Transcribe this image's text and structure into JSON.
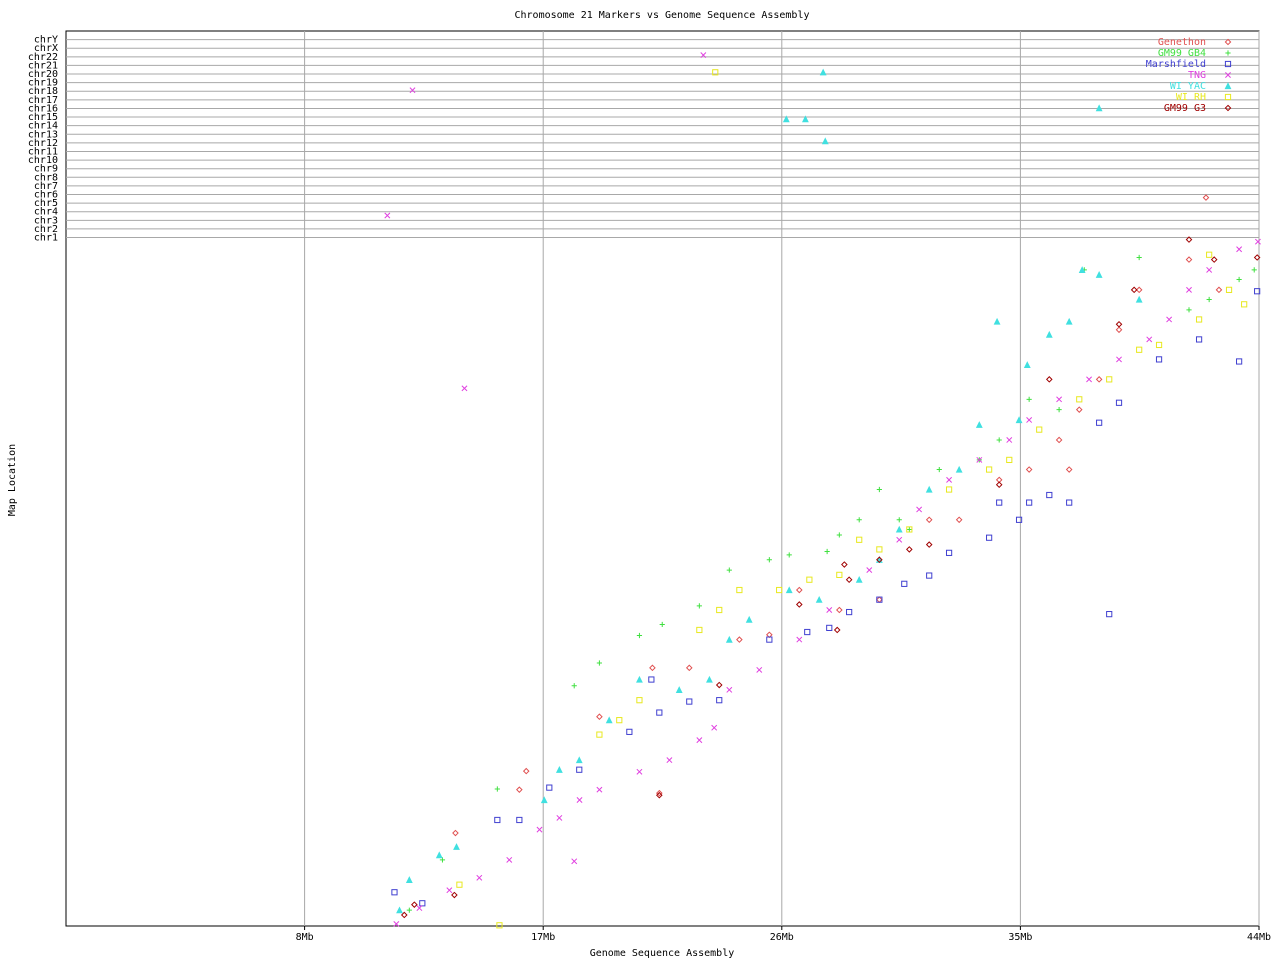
{
  "chart_data": {
    "type": "scatter",
    "title": "Chromosome 21 Markers vs Genome Sequence Assembly",
    "x_label": "Genome Sequence Assembly",
    "y_label": "Map Location",
    "xlim": [
      -1,
      44
    ],
    "ylim": [
      0,
      130
    ],
    "xticks": [
      {
        "value": 8,
        "label": "8Mb"
      },
      {
        "value": 17,
        "label": "17Mb"
      },
      {
        "value": 26,
        "label": "26Mb"
      },
      {
        "value": 35,
        "label": "35Mb"
      },
      {
        "value": 44,
        "label": "44Mb"
      }
    ],
    "yticks": [
      {
        "value": 100,
        "label": "chr1"
      },
      {
        "value": 101.25,
        "label": "chr2"
      },
      {
        "value": 102.5,
        "label": "chr3"
      },
      {
        "value": 103.75,
        "label": "chr4"
      },
      {
        "value": 105,
        "label": "chr5"
      },
      {
        "value": 106.25,
        "label": "chr6"
      },
      {
        "value": 107.5,
        "label": "chr7"
      },
      {
        "value": 108.75,
        "label": "chr8"
      },
      {
        "value": 110,
        "label": "chr9"
      },
      {
        "value": 111.25,
        "label": "chr10"
      },
      {
        "value": 112.5,
        "label": "chr11"
      },
      {
        "value": 113.75,
        "label": "chr12"
      },
      {
        "value": 115,
        "label": "chr13"
      },
      {
        "value": 116.25,
        "label": "chr14"
      },
      {
        "value": 117.5,
        "label": "chr15"
      },
      {
        "value": 118.75,
        "label": "chr16"
      },
      {
        "value": 120,
        "label": "chr17"
      },
      {
        "value": 121.25,
        "label": "chr18"
      },
      {
        "value": 122.5,
        "label": "chr19"
      },
      {
        "value": 123.75,
        "label": "chr20"
      },
      {
        "value": 125,
        "label": "chr21"
      },
      {
        "value": 126.25,
        "label": "chr22"
      },
      {
        "value": 127.5,
        "label": "chrX"
      },
      {
        "value": 128.75,
        "label": "chrY"
      }
    ],
    "grid": true,
    "legend": "top-right",
    "series": [
      {
        "name": "Genethon",
        "color": "#e05050",
        "marker": "diamond",
        "x": [
          13.69,
          16.1,
          16.36,
          19.12,
          21.12,
          21.38,
          22.51,
          24.4,
          25.53,
          26.66,
          28.17,
          29.68,
          31.56,
          32.69,
          34.2,
          35.33,
          36.46,
          37.22,
          37.97,
          38.72,
          39.48,
          41.36,
          42.0,
          42.49,
          36.84
        ],
        "y": [
          13.5,
          19.8,
          22.5,
          30.4,
          37.5,
          19.3,
          37.5,
          41.6,
          42.3,
          48.8,
          45.9,
          47.4,
          59.0,
          59.0,
          64.8,
          66.3,
          70.6,
          75.0,
          79.4,
          86.6,
          92.4,
          96.8,
          105.8,
          92.4,
          66.3
        ]
      },
      {
        "name": "GM99 GB4",
        "color": "#40e040",
        "marker": "plus",
        "x": [
          15.27,
          18.17,
          19.12,
          20.63,
          21.49,
          22.89,
          24.02,
          25.53,
          26.28,
          27.71,
          28.17,
          28.92,
          29.68,
          30.43,
          30.81,
          31.94,
          33.45,
          34.2,
          35.33,
          36.46,
          37.41,
          39.48,
          41.36,
          42.12,
          43.25,
          43.82,
          11.95,
          13.2
        ],
        "y": [
          19.9,
          34.9,
          38.2,
          42.2,
          43.8,
          46.5,
          51.7,
          53.2,
          53.9,
          54.4,
          56.8,
          59.0,
          63.4,
          59.0,
          57.6,
          66.3,
          67.7,
          70.6,
          76.5,
          75.0,
          95.3,
          97.1,
          89.5,
          91.0,
          93.9,
          95.3,
          2.3,
          9.6
        ]
      },
      {
        "name": "Marshfield",
        "color": "#4040d0",
        "marker": "square",
        "x": [
          11.39,
          12.44,
          15.27,
          16.1,
          17.23,
          18.36,
          20.25,
          21.08,
          21.38,
          22.51,
          23.64,
          25.53,
          26.96,
          27.79,
          28.54,
          29.68,
          30.62,
          31.56,
          32.31,
          33.82,
          34.2,
          34.95,
          35.33,
          36.09,
          36.84,
          37.97,
          38.72,
          38.35,
          40.23,
          41.74,
          43.25,
          43.93
        ],
        "y": [
          4.9,
          3.3,
          15.4,
          15.4,
          20.1,
          22.7,
          28.2,
          35.8,
          31.0,
          32.6,
          32.8,
          41.6,
          42.7,
          43.3,
          45.6,
          47.4,
          49.7,
          50.9,
          54.2,
          56.4,
          61.5,
          59.0,
          61.5,
          62.6,
          61.5,
          73.1,
          76.0,
          45.3,
          82.3,
          85.2,
          82.0,
          92.2
        ]
      },
      {
        "name": "TNG",
        "color": "#e040e0",
        "marker": "x",
        "x": [
          11.46,
          12.33,
          13.46,
          14.59,
          15.72,
          16.86,
          17.61,
          18.37,
          19.12,
          20.63,
          21.76,
          22.89,
          23.45,
          24.02,
          25.15,
          26.66,
          27.79,
          29.3,
          30.43,
          31.18,
          32.31,
          33.45,
          34.58,
          35.33,
          36.46,
          37.59,
          38.72,
          39.86,
          40.61,
          41.36,
          42.12,
          43.25,
          43.96,
          12.07,
          11.12,
          23.04,
          14.03,
          18.17
        ],
        "y": [
          0.3,
          2.6,
          5.2,
          7.0,
          9.6,
          14.0,
          15.7,
          18.3,
          19.8,
          22.4,
          24.1,
          27.0,
          28.8,
          34.3,
          37.2,
          41.6,
          45.9,
          51.7,
          56.1,
          60.5,
          64.8,
          67.7,
          70.6,
          73.5,
          76.5,
          79.4,
          82.3,
          85.2,
          88.1,
          92.4,
          95.3,
          98.3,
          99.4,
          121.4,
          103.2,
          126.5,
          78.1,
          9.4
        ]
      },
      {
        "name": "WI YAC",
        "color": "#40e0e0",
        "marker": "triangle",
        "x": [
          11.58,
          11.95,
          13.08,
          13.73,
          17.04,
          17.61,
          18.36,
          19.49,
          20.63,
          22.13,
          23.27,
          24.02,
          24.77,
          26.28,
          27.41,
          28.92,
          29.68,
          30.43,
          31.56,
          32.69,
          33.45,
          34.12,
          34.95,
          35.26,
          36.09,
          36.84,
          37.33,
          37.97,
          39.48,
          26.17,
          26.89,
          27.64,
          27.56,
          37.97
        ],
        "y": [
          2.3,
          6.7,
          10.3,
          11.5,
          18.3,
          22.7,
          24.1,
          29.9,
          35.8,
          34.3,
          35.8,
          41.6,
          44.5,
          48.8,
          47.4,
          50.3,
          53.2,
          57.6,
          63.4,
          66.3,
          72.8,
          87.8,
          73.5,
          81.5,
          85.9,
          87.8,
          95.3,
          94.6,
          91.0,
          117.2,
          117.2,
          114.0,
          124.0,
          118.8
        ]
      },
      {
        "name": "WI RH",
        "color": "#e8e820",
        "marker": "square",
        "x": [
          13.84,
          15.35,
          19.12,
          19.87,
          20.63,
          22.89,
          23.64,
          24.4,
          25.9,
          27.04,
          28.17,
          28.92,
          29.68,
          30.81,
          32.31,
          33.82,
          34.58,
          35.71,
          37.22,
          38.35,
          39.48,
          40.23,
          41.74,
          42.87,
          43.44,
          42.12,
          23.49
        ],
        "y": [
          6.0,
          0.1,
          27.8,
          29.9,
          32.8,
          43.0,
          45.9,
          48.8,
          48.8,
          50.3,
          51.0,
          56.1,
          54.7,
          57.6,
          63.4,
          66.3,
          67.7,
          72.1,
          76.5,
          79.4,
          83.7,
          84.4,
          88.1,
          92.4,
          90.3,
          97.5,
          124.0
        ]
      },
      {
        "name": "GM99 G3",
        "color": "#a00000",
        "marker": "diamond",
        "x": [
          11.76,
          12.14,
          13.65,
          21.38,
          23.64,
          26.66,
          28.09,
          28.54,
          29.68,
          30.81,
          31.56,
          34.2,
          36.09,
          38.72,
          39.29,
          41.36,
          42.31,
          43.93,
          28.36
        ],
        "y": [
          1.6,
          3.1,
          4.5,
          19.0,
          35.0,
          46.7,
          43.0,
          50.3,
          53.2,
          54.7,
          55.4,
          64.1,
          79.4,
          87.4,
          92.4,
          99.7,
          96.8,
          97.1,
          52.5
        ]
      }
    ]
  }
}
